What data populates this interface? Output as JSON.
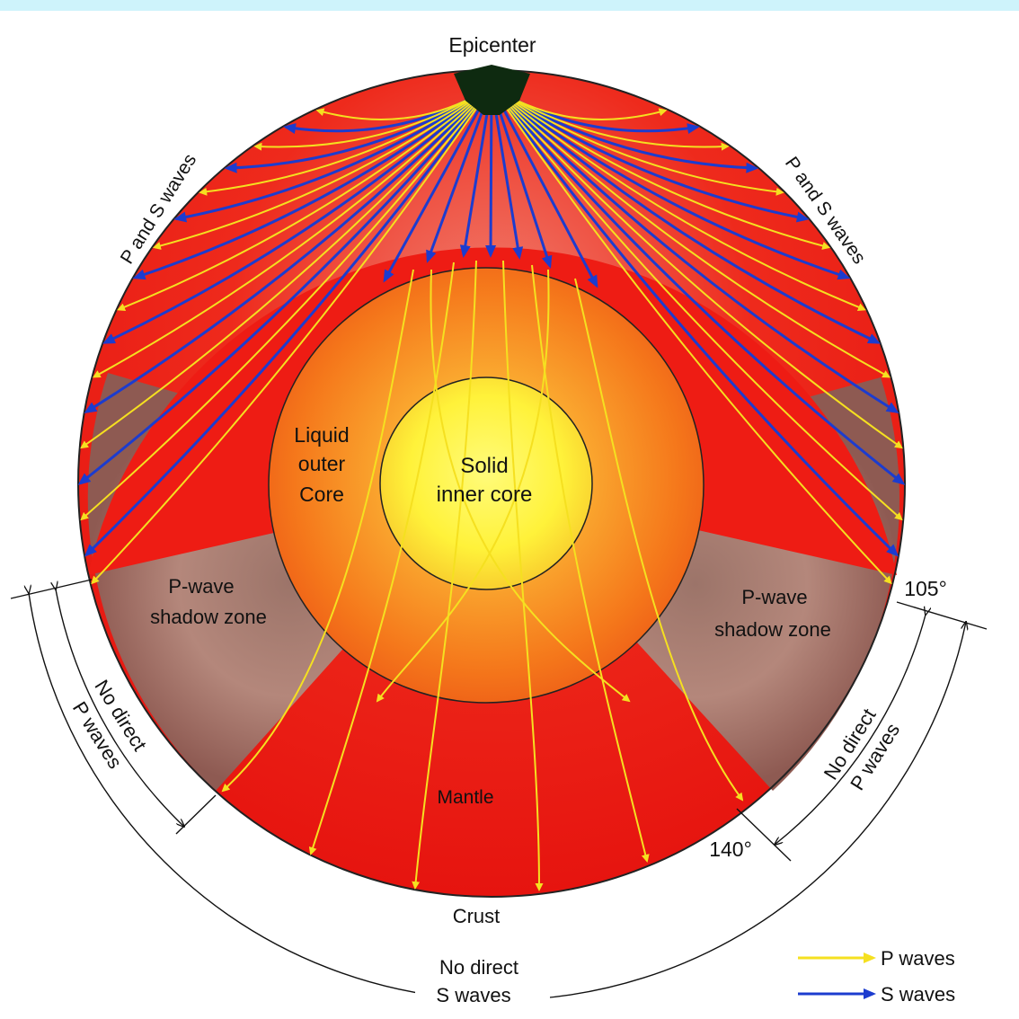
{
  "labels": {
    "epicenter": "Epicenter",
    "ps_waves_left": "P and S waves",
    "ps_waves_right": "P and S waves",
    "liquid_outer_core": [
      "Liquid",
      "outer",
      "Core"
    ],
    "solid_inner_core": [
      "Solid",
      "inner core"
    ],
    "shadow_zone_left": [
      "P-wave",
      "shadow zone"
    ],
    "shadow_zone_right": [
      "P-wave",
      "shadow zone"
    ],
    "mantle": "Mantle",
    "crust": "Crust",
    "angle_105": "105°",
    "angle_140": "140°",
    "no_direct_p_left": [
      "No direct",
      "P waves"
    ],
    "no_direct_p_right": [
      "No direct",
      "P waves"
    ],
    "no_direct_s": [
      "No direct",
      "S waves"
    ]
  },
  "legend": [
    {
      "label": "P waves",
      "color": "#f5e020"
    },
    {
      "label": "S waves",
      "color": "#1c3ccf"
    }
  ],
  "colors": {
    "mantle_red": "#ee1c14",
    "shadow_brown": "#a77d72",
    "outer_core": "#f7801c",
    "inner_core": "#fff23a",
    "epicenter": "#0e2a10"
  }
}
